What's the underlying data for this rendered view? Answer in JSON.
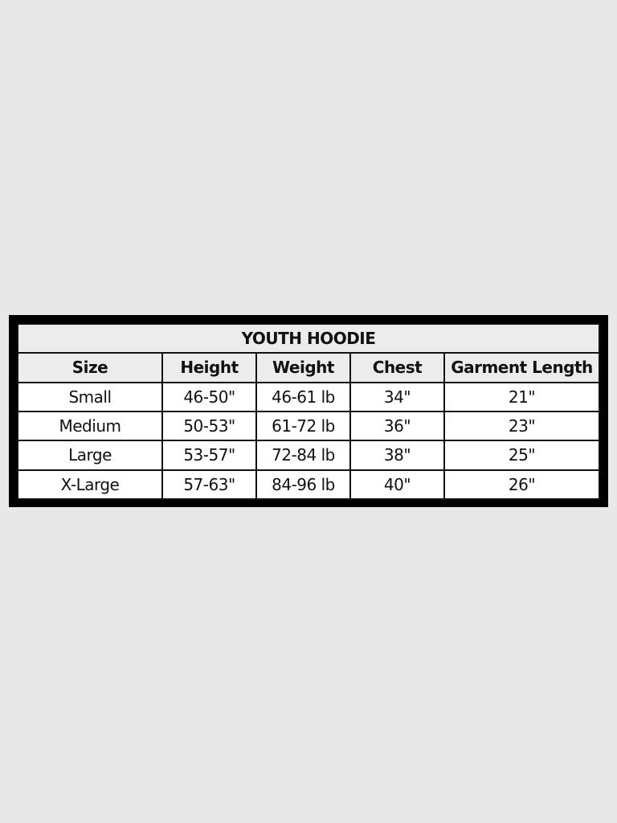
{
  "table": {
    "title": "YOUTH HOODIE",
    "headers": [
      "Size",
      "Height",
      "Weight",
      "Chest",
      "Garment Length"
    ],
    "rows": [
      [
        "Small",
        "46-50\"",
        "46-61 lb",
        "34\"",
        "21\""
      ],
      [
        "Medium",
        "50-53\"",
        "61-72 lb",
        "36\"",
        "23\""
      ],
      [
        "Large",
        "53-57\"",
        "72-84 lb",
        "38\"",
        "25\""
      ],
      [
        "X-Large",
        "57-63\"",
        "84-96 lb",
        "40\"",
        "26\""
      ]
    ]
  }
}
